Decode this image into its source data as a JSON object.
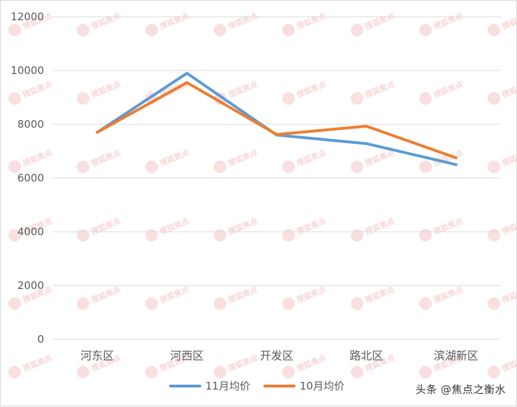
{
  "chart_data": {
    "type": "line",
    "categories": [
      "河东区",
      "河西区",
      "开发区",
      "路北区",
      "滨湖新区"
    ],
    "series": [
      {
        "name": "11月均价",
        "values": [
          7700,
          9900,
          7600,
          7280,
          6500
        ],
        "color": "#5b9bd5"
      },
      {
        "name": "10月均价",
        "values": [
          7700,
          9550,
          7620,
          7930,
          6750
        ],
        "color": "#ed7d31"
      }
    ],
    "ylim": [
      0,
      12000
    ],
    "yticks": [
      0,
      2000,
      4000,
      6000,
      8000,
      10000,
      12000
    ],
    "grid": true,
    "legend": "bottom",
    "gridline_color": "#d9d9d9"
  },
  "watermark": {
    "text": "搜狐焦点",
    "color": "#f2b8b8"
  },
  "credit": "头条 @焦点之衡水"
}
